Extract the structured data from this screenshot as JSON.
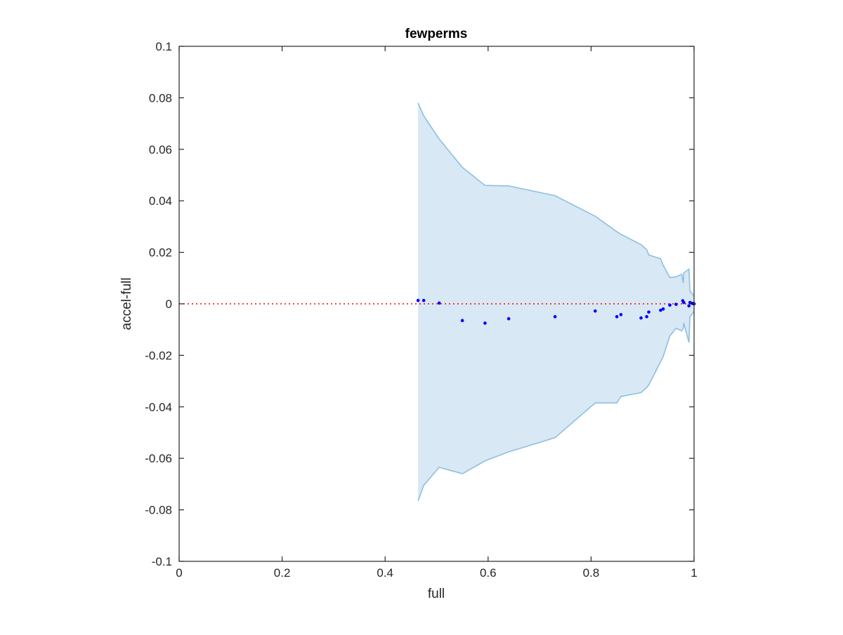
{
  "chart_data": {
    "type": "scatter",
    "title": "fewperms",
    "xlabel": "full",
    "ylabel": "accel-full",
    "xlim": [
      0,
      1
    ],
    "ylim": [
      -0.1,
      0.1
    ],
    "xticks": [
      0,
      0.2,
      0.4,
      0.6,
      0.8,
      1
    ],
    "xtick_labels": [
      "0",
      "0.2",
      "0.4",
      "0.6",
      "0.8",
      "1"
    ],
    "yticks": [
      0.1,
      0.08,
      0.06,
      0.04,
      0.02,
      0,
      -0.02,
      -0.04,
      -0.06,
      -0.08,
      -0.1
    ],
    "ytick_labels": [
      "0.1",
      "0.08",
      "0.06",
      "0.04",
      "0.02",
      "0",
      "-0.02",
      "-0.04",
      "-0.06",
      "-0.08",
      "-0.1"
    ],
    "grid": false,
    "reference_line": {
      "y": 0,
      "style": "dotted",
      "color": "#ff0000"
    },
    "band": {
      "color": "#d8e8f4",
      "edge_color": "#8cc0e4",
      "upper": [
        [
          0.464,
          0.078
        ],
        [
          0.475,
          0.073
        ],
        [
          0.505,
          0.064
        ],
        [
          0.55,
          0.053
        ],
        [
          0.594,
          0.046
        ],
        [
          0.64,
          0.0458
        ],
        [
          0.73,
          0.042
        ],
        [
          0.808,
          0.034
        ],
        [
          0.85,
          0.028
        ],
        [
          0.858,
          0.027
        ],
        [
          0.897,
          0.023
        ],
        [
          0.908,
          0.021
        ],
        [
          0.912,
          0.019
        ],
        [
          0.935,
          0.0175
        ],
        [
          0.94,
          0.015
        ],
        [
          0.953,
          0.0102
        ],
        [
          0.965,
          0.0105
        ],
        [
          0.976,
          0.0115
        ],
        [
          0.979,
          0.008
        ],
        [
          0.98,
          0.012
        ],
        [
          0.99,
          0.0135
        ],
        [
          0.992,
          0.005
        ],
        [
          0.996,
          0.004
        ],
        [
          1.0,
          0.003
        ]
      ],
      "lower": [
        [
          0.464,
          -0.0765
        ],
        [
          0.475,
          -0.0705
        ],
        [
          0.505,
          -0.0635
        ],
        [
          0.55,
          -0.066
        ],
        [
          0.594,
          -0.061
        ],
        [
          0.64,
          -0.0575
        ],
        [
          0.73,
          -0.052
        ],
        [
          0.808,
          -0.0385
        ],
        [
          0.85,
          -0.0385
        ],
        [
          0.858,
          -0.036
        ],
        [
          0.897,
          -0.0345
        ],
        [
          0.908,
          -0.0325
        ],
        [
          0.912,
          -0.0315
        ],
        [
          0.935,
          -0.0225
        ],
        [
          0.94,
          -0.0205
        ],
        [
          0.953,
          -0.0125
        ],
        [
          0.965,
          -0.0095
        ],
        [
          0.976,
          -0.0105
        ],
        [
          0.979,
          -0.0095
        ],
        [
          0.98,
          -0.0075
        ],
        [
          0.99,
          -0.015
        ],
        [
          0.992,
          -0.005
        ],
        [
          0.996,
          -0.004
        ],
        [
          1.0,
          -0.003
        ]
      ]
    },
    "series": [
      {
        "color": "#0000ff",
        "points": [
          [
            0.464,
            0.0013
          ],
          [
            0.475,
            0.0013
          ],
          [
            0.505,
            0.0003
          ],
          [
            0.55,
            -0.0065
          ],
          [
            0.594,
            -0.0075
          ],
          [
            0.64,
            -0.0058
          ],
          [
            0.73,
            -0.005
          ],
          [
            0.808,
            -0.0028
          ],
          [
            0.85,
            -0.005
          ],
          [
            0.858,
            -0.0042
          ],
          [
            0.897,
            -0.0055
          ],
          [
            0.908,
            -0.005
          ],
          [
            0.912,
            -0.0032
          ],
          [
            0.935,
            -0.0025
          ],
          [
            0.94,
            -0.002
          ],
          [
            0.953,
            -0.0005
          ],
          [
            0.965,
            -0.0002
          ],
          [
            0.978,
            0.0012
          ],
          [
            0.98,
            0.0005
          ],
          [
            0.99,
            -0.0008
          ],
          [
            0.992,
            0.0005
          ],
          [
            0.996,
            0.0002
          ],
          [
            0.998,
            0.0001
          ],
          [
            1.0,
            0.0
          ]
        ]
      }
    ]
  }
}
